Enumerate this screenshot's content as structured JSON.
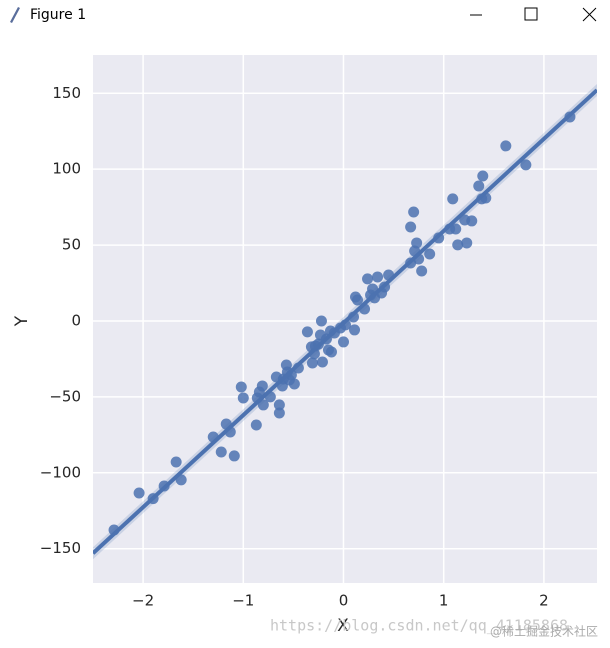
{
  "window": {
    "title": "Figure 1"
  },
  "chart_data": {
    "type": "scatter",
    "xlabel": "X",
    "ylabel": "Y",
    "color": "#4c72b0",
    "grid": true,
    "fit_line": true,
    "xlim": [
      -2.5,
      2.53
    ],
    "ylim": [
      -172.6,
      175.2
    ],
    "xticks": [
      {
        "value": -2,
        "label": "−2"
      },
      {
        "value": -1,
        "label": "−1"
      },
      0,
      1,
      2
    ],
    "yticks": [
      {
        "value": -150,
        "label": "−150"
      },
      {
        "value": -100,
        "label": "−100"
      },
      {
        "value": -50,
        "label": "−50"
      },
      0,
      50,
      100,
      150
    ],
    "x": [
      -2.29,
      -2.04,
      -1.9,
      -1.79,
      -1.67,
      -1.62,
      -1.3,
      -1.22,
      -1.17,
      -1.13,
      -1.09,
      -1.02,
      -1.0,
      -0.87,
      -0.86,
      -0.84,
      -0.81,
      -0.8,
      -0.73,
      -0.67,
      -0.64,
      -0.64,
      -0.61,
      -0.6,
      -0.57,
      -0.56,
      -0.54,
      -0.52,
      -0.49,
      -0.45,
      -0.36,
      -0.32,
      -0.31,
      -0.29,
      -0.28,
      -0.25,
      -0.23,
      -0.22,
      -0.21,
      -0.17,
      -0.15,
      -0.13,
      -0.12,
      -0.09,
      -0.03,
      0.0,
      0.02,
      0.1,
      0.11,
      0.12,
      0.14,
      0.21,
      0.24,
      0.27,
      0.29,
      0.31,
      0.34,
      0.38,
      0.41,
      0.45,
      0.67,
      0.67,
      0.7,
      0.71,
      0.73,
      0.75,
      0.78,
      0.86,
      0.95,
      1.06,
      1.09,
      1.12,
      1.14,
      1.21,
      1.23,
      1.28,
      1.35,
      1.39,
      1.38,
      1.42,
      1.62,
      1.82,
      2.26
    ],
    "values": [
      -137.7,
      -113.3,
      -117,
      -108.7,
      -92.9,
      -104.7,
      -76.4,
      -86.3,
      -67.9,
      -73.1,
      -88.9,
      -43.5,
      -50.7,
      -68.5,
      -50.7,
      -46.8,
      -42.8,
      -55.3,
      -50,
      -36.9,
      -55.3,
      -60.6,
      -42.8,
      -38.2,
      -29,
      -33.6,
      -38.9,
      -35.6,
      -41.5,
      -31,
      -7.2,
      -17.1,
      -27.7,
      -21.7,
      -16.5,
      -15.2,
      -9.2,
      0,
      -27,
      -11.9,
      -19.1,
      -6.6,
      -20.4,
      -7.9,
      -4.6,
      -13.8,
      -2.6,
      2.6,
      -5.9,
      15.8,
      13.8,
      7.9,
      27.7,
      17.1,
      21.1,
      15.2,
      29,
      18.4,
      22.4,
      30.3,
      38.2,
      61.9,
      71.8,
      46.1,
      51.4,
      40.8,
      32.9,
      44.1,
      54.7,
      60.6,
      80.4,
      60.6,
      50.1,
      66.5,
      51.4,
      65.9,
      88.9,
      95.5,
      80.4,
      81,
      115.3,
      102.8,
      134.4
    ]
  },
  "watermark": [
    "https://blog.csdn.net/qq_41185868",
    "@稀土掘金技术社区"
  ]
}
